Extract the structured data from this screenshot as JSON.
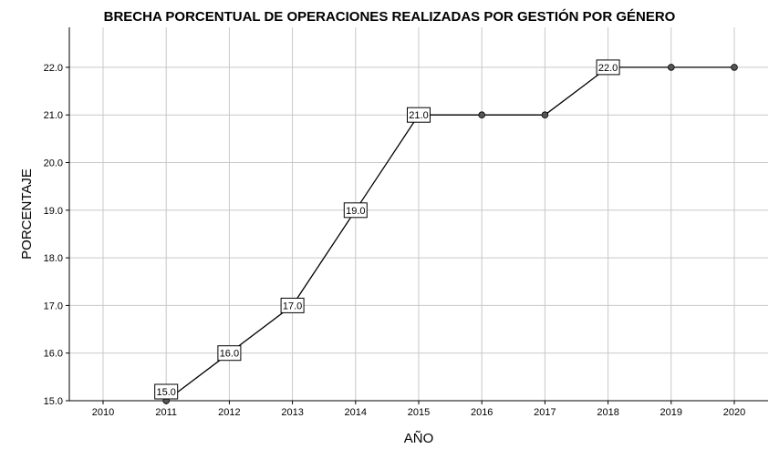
{
  "chart_data": {
    "type": "line",
    "title": "BRECHA PORCENTUAL DE OPERACIONES REALIZADAS POR GESTIÓN POR GÉNERO",
    "xlabel": "AÑO",
    "ylabel": "PORCENTAJE",
    "categories": [
      "2010",
      "2011",
      "2012",
      "2013",
      "2014",
      "2015",
      "2016",
      "2017",
      "2018",
      "2019",
      "2020"
    ],
    "series": [
      {
        "values": [
          null,
          15.0,
          16.0,
          17.0,
          19.0,
          21.0,
          21.0,
          21.0,
          22.0,
          22.0,
          22.0
        ]
      }
    ],
    "data_labels": [
      "",
      "15.0",
      "16.0",
      "17.0",
      "19.0",
      "21.0",
      "",
      "",
      "22.0",
      "",
      ""
    ],
    "y_ticks": [
      "15.0",
      "16.0",
      "17.0",
      "18.0",
      "19.0",
      "20.0",
      "21.0",
      "22.0"
    ],
    "ylim": [
      15,
      22.8
    ],
    "grid": true,
    "colors": {
      "line": "#000000",
      "marker": "#555555",
      "grid": "#c8c8c8",
      "axis": "#000000"
    }
  }
}
